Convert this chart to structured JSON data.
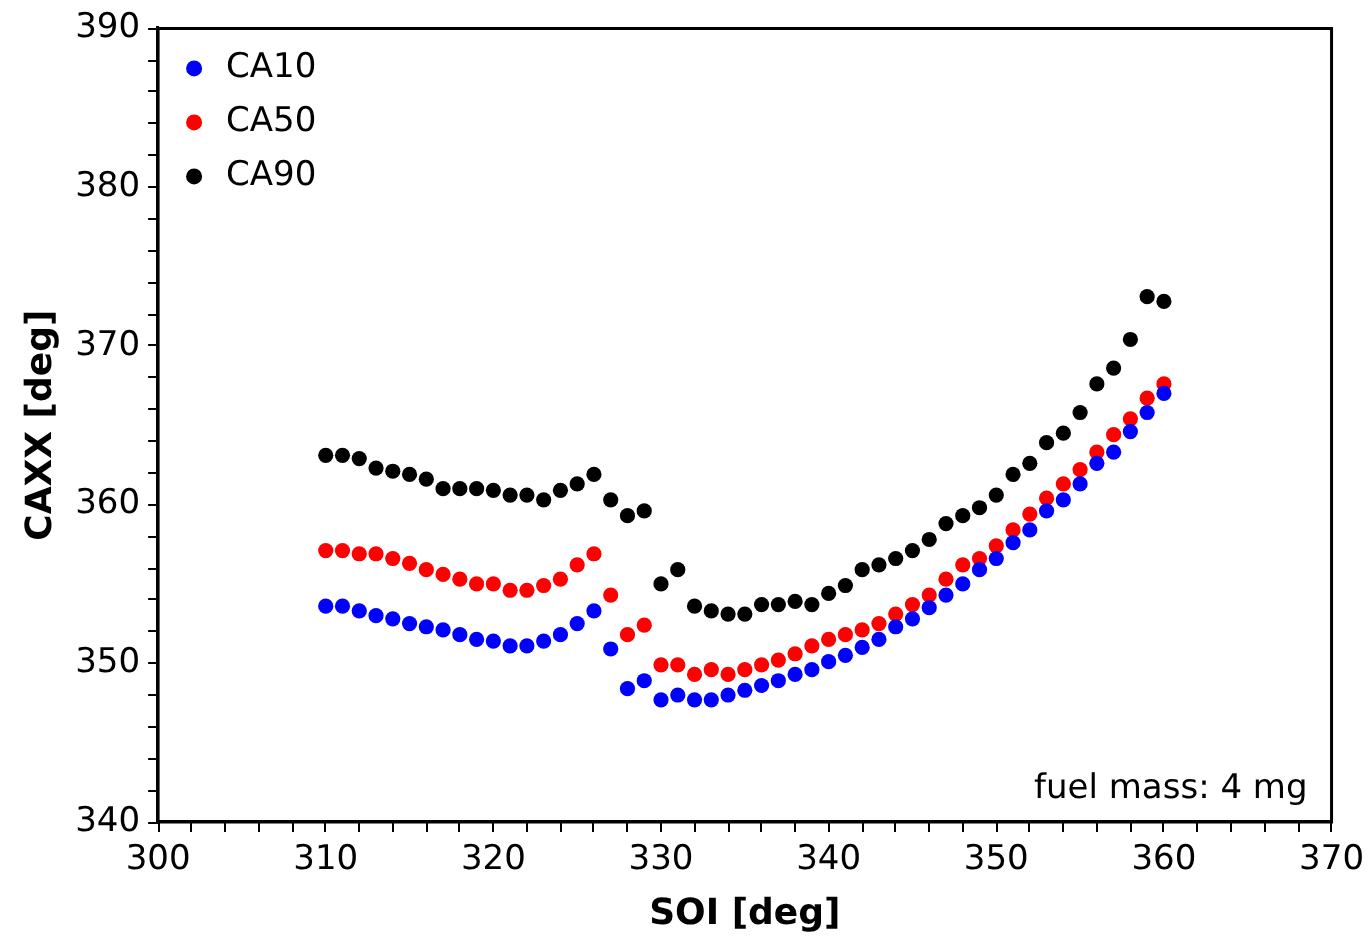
{
  "chart_data": {
    "type": "scatter",
    "xlabel": "SOI [deg]",
    "ylabel": "CAXX [deg]",
    "x": [
      310,
      311,
      312,
      313,
      314,
      315,
      316,
      317,
      318,
      319,
      320,
      321,
      322,
      323,
      324,
      325,
      326,
      327,
      328,
      329,
      330,
      331,
      332,
      333,
      334,
      335,
      336,
      337,
      338,
      339,
      340,
      341,
      342,
      343,
      344,
      345,
      346,
      347,
      348,
      349,
      350,
      351,
      352,
      353,
      354,
      355,
      356,
      357,
      358,
      359,
      360
    ],
    "series": [
      {
        "name": "CA10",
        "color": "#0000ff",
        "values": [
          353.6,
          353.6,
          353.3,
          353.0,
          352.8,
          352.5,
          352.3,
          352.1,
          351.8,
          351.5,
          351.4,
          351.1,
          351.1,
          351.4,
          351.8,
          352.5,
          353.3,
          350.9,
          348.4,
          348.9,
          347.7,
          348.0,
          347.7,
          347.7,
          348.0,
          348.3,
          348.6,
          348.9,
          349.3,
          349.6,
          350.1,
          350.5,
          351.0,
          351.5,
          352.3,
          352.8,
          353.5,
          354.3,
          355.0,
          355.9,
          356.6,
          357.6,
          358.4,
          359.6,
          360.3,
          361.3,
          362.6,
          363.3,
          364.6,
          365.8,
          367.0
        ]
      },
      {
        "name": "CA50",
        "color": "#ff0000",
        "values": [
          357.1,
          357.1,
          356.9,
          356.9,
          356.6,
          356.3,
          355.9,
          355.6,
          355.3,
          355.0,
          355.0,
          354.6,
          354.6,
          354.9,
          355.3,
          356.2,
          356.9,
          354.3,
          351.8,
          352.4,
          349.9,
          349.9,
          349.3,
          349.6,
          349.3,
          349.6,
          349.9,
          350.2,
          350.6,
          351.1,
          351.5,
          351.8,
          352.1,
          352.5,
          353.1,
          353.7,
          354.3,
          355.3,
          356.2,
          356.6,
          357.4,
          358.4,
          359.4,
          360.4,
          361.3,
          362.2,
          363.3,
          364.4,
          365.4,
          366.7,
          367.6
        ]
      },
      {
        "name": "CA90",
        "color": "#000000",
        "values": [
          363.1,
          363.1,
          362.9,
          362.3,
          362.1,
          361.9,
          361.6,
          361.0,
          361.0,
          361.0,
          360.9,
          360.6,
          360.6,
          360.3,
          360.9,
          361.3,
          361.9,
          360.3,
          359.3,
          359.6,
          355.0,
          355.9,
          353.6,
          353.3,
          353.1,
          353.1,
          353.7,
          353.7,
          353.9,
          353.7,
          354.4,
          354.9,
          355.9,
          356.2,
          356.6,
          357.1,
          357.8,
          358.8,
          359.3,
          359.8,
          360.6,
          361.9,
          362.6,
          363.9,
          364.5,
          365.8,
          367.6,
          368.6,
          370.4,
          373.1,
          372.8
        ]
      }
    ],
    "xlim": [
      300,
      370
    ],
    "ylim": [
      340,
      390
    ],
    "xticks": [
      300,
      {
        "value": 302,
        "label": null
      },
      {
        "value": 304,
        "label": null
      },
      {
        "value": 306,
        "label": null
      },
      {
        "value": 308,
        "label": null
      },
      310,
      {
        "value": 312,
        "label": null
      },
      {
        "value": 314,
        "label": null
      },
      {
        "value": 316,
        "label": null
      },
      {
        "value": 318,
        "label": null
      },
      320,
      {
        "value": 322,
        "label": null
      },
      {
        "value": 324,
        "label": null
      },
      {
        "value": 326,
        "label": null
      },
      {
        "value": 328,
        "label": null
      },
      330,
      {
        "value": 332,
        "label": null
      },
      {
        "value": 334,
        "label": null
      },
      {
        "value": 336,
        "label": null
      },
      {
        "value": 338,
        "label": null
      },
      340,
      {
        "value": 342,
        "label": null
      },
      {
        "value": 344,
        "label": null
      },
      {
        "value": 346,
        "label": null
      },
      {
        "value": 348,
        "label": null
      },
      350,
      {
        "value": 352,
        "label": null
      },
      {
        "value": 354,
        "label": null
      },
      {
        "value": 356,
        "label": null
      },
      {
        "value": 358,
        "label": null
      },
      360,
      {
        "value": 362,
        "label": null
      },
      {
        "value": 364,
        "label": null
      },
      {
        "value": 366,
        "label": null
      },
      {
        "value": 368,
        "label": null
      },
      370
    ],
    "yticks": [
      340,
      {
        "value": 342,
        "label": null
      },
      {
        "value": 344,
        "label": null
      },
      {
        "value": 346,
        "label": null
      },
      {
        "value": 348,
        "label": null
      },
      350,
      {
        "value": 352,
        "label": null
      },
      {
        "value": 354,
        "label": null
      },
      {
        "value": 356,
        "label": null
      },
      {
        "value": 358,
        "label": null
      },
      360,
      {
        "value": 362,
        "label": null
      },
      {
        "value": 364,
        "label": null
      },
      {
        "value": 366,
        "label": null
      },
      {
        "value": 368,
        "label": null
      },
      370,
      {
        "value": 372,
        "label": null
      },
      {
        "value": 374,
        "label": null
      },
      {
        "value": 376,
        "label": null
      },
      {
        "value": 378,
        "label": null
      },
      380,
      {
        "value": 382,
        "label": null
      },
      {
        "value": 384,
        "label": null
      },
      {
        "value": 386,
        "label": null
      },
      {
        "value": 388,
        "label": null
      },
      390
    ],
    "legend": "top left",
    "marker": "circle",
    "grid": false,
    "annotations": [
      "fuel mass: 4 mg"
    ]
  }
}
